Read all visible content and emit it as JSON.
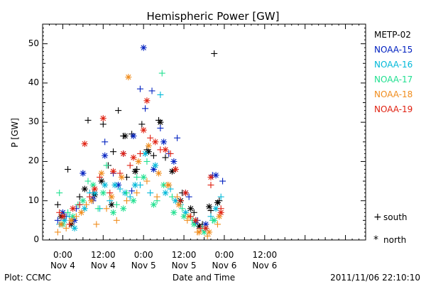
{
  "chart_data": {
    "type": "scatter",
    "title": "Hemispheric Power [GW]",
    "ylabel": "P [GW]",
    "xlabel": "Date and Time",
    "ylim": [
      0,
      55
    ],
    "xlim_hours": [
      -6,
      90
    ],
    "y_ticks": [
      0,
      10,
      20,
      30,
      40,
      50
    ],
    "x_ticks": [
      {
        "hour": 0,
        "time": "0:00",
        "date": "Nov 4"
      },
      {
        "hour": 12,
        "time": "12:00",
        "date": "Nov 4"
      },
      {
        "hour": 24,
        "time": "0:00",
        "date": "Nov 5"
      },
      {
        "hour": 36,
        "time": "12:00",
        "date": "Nov 5"
      },
      {
        "hour": 48,
        "time": "0:00",
        "date": "Nov 6"
      },
      {
        "hour": 60,
        "time": "12:00",
        "date": "Nov 6"
      }
    ],
    "legend_position": "right",
    "series": [
      {
        "name": "METP-02",
        "color": "#000000",
        "points": [
          [
            -1.5,
            9,
            "+"
          ],
          [
            0.5,
            6,
            "+"
          ],
          [
            1.5,
            18,
            "+"
          ],
          [
            3,
            5,
            "+"
          ],
          [
            5,
            11,
            "+"
          ],
          [
            7.5,
            30.5,
            "+"
          ],
          [
            9,
            12,
            "+"
          ],
          [
            12,
            29.5,
            "+"
          ],
          [
            13.5,
            19,
            "+"
          ],
          [
            15,
            22.5,
            "+"
          ],
          [
            16.5,
            33,
            "+"
          ],
          [
            18,
            26.5,
            "+"
          ],
          [
            19,
            16,
            "+"
          ],
          [
            20.5,
            27,
            "+"
          ],
          [
            22,
            18,
            "+"
          ],
          [
            23.5,
            29.5,
            "+"
          ],
          [
            25,
            23,
            "+"
          ],
          [
            27,
            21.5,
            "+"
          ],
          [
            28.5,
            30.5,
            "+"
          ],
          [
            30.5,
            21,
            "+"
          ],
          [
            33.5,
            18,
            "+"
          ],
          [
            35.5,
            12,
            "+"
          ],
          [
            39,
            7,
            "+"
          ],
          [
            41.5,
            4,
            "+"
          ],
          [
            44,
            7.5,
            "+"
          ],
          [
            45,
            47.5,
            "+"
          ],
          [
            46.5,
            10,
            "+"
          ],
          [
            -0.5,
            6,
            "*"
          ],
          [
            2.5,
            4,
            "*"
          ],
          [
            6.5,
            13,
            "*"
          ],
          [
            9.5,
            11.5,
            "*"
          ],
          [
            11.5,
            15,
            "*"
          ],
          [
            14.5,
            9,
            "*"
          ],
          [
            18.5,
            26.5,
            "*"
          ],
          [
            21.5,
            17.5,
            "*"
          ],
          [
            25.5,
            22.5,
            "*"
          ],
          [
            29,
            30,
            "*"
          ],
          [
            32.5,
            17.5,
            "*"
          ],
          [
            35,
            10,
            "*"
          ],
          [
            38,
            8,
            "*"
          ],
          [
            40.5,
            3.5,
            "*"
          ],
          [
            43.5,
            8.5,
            "*"
          ],
          [
            46,
            9.5,
            "*"
          ]
        ]
      },
      {
        "name": "NOAA-15",
        "color": "#0020c0",
        "points": [
          [
            -1.5,
            5,
            "+"
          ],
          [
            1,
            6,
            "+"
          ],
          [
            4,
            8,
            "+"
          ],
          [
            6,
            17,
            "+"
          ],
          [
            9,
            10,
            "+"
          ],
          [
            12.5,
            25,
            "+"
          ],
          [
            15,
            17,
            "+"
          ],
          [
            18,
            22,
            "+"
          ],
          [
            20.5,
            12.5,
            "+"
          ],
          [
            23,
            38.5,
            "+"
          ],
          [
            24.5,
            33.5,
            "+"
          ],
          [
            26.5,
            38,
            "+"
          ],
          [
            29,
            28.5,
            "+"
          ],
          [
            31.5,
            22,
            "+"
          ],
          [
            34,
            26,
            "+"
          ],
          [
            37.5,
            11,
            "+"
          ],
          [
            40,
            5,
            "+"
          ],
          [
            44.5,
            16.5,
            "+"
          ],
          [
            47.5,
            15,
            "+"
          ],
          [
            0,
            7,
            "*"
          ],
          [
            3.5,
            5,
            "*"
          ],
          [
            6,
            17,
            "*"
          ],
          [
            9,
            10.5,
            "*"
          ],
          [
            12.5,
            21.5,
            "*"
          ],
          [
            16.5,
            14,
            "*"
          ],
          [
            21,
            26.5,
            "*"
          ],
          [
            24,
            49,
            "*"
          ],
          [
            27,
            18,
            "*"
          ],
          [
            30,
            25,
            "*"
          ],
          [
            33,
            20,
            "*"
          ],
          [
            36.5,
            12,
            "*"
          ],
          [
            39.5,
            4.5,
            "*"
          ],
          [
            42.5,
            4,
            "*"
          ],
          [
            45.5,
            16.5,
            "*"
          ]
        ]
      },
      {
        "name": "NOAA-16",
        "color": "#00b8d8",
        "points": [
          [
            -1,
            4,
            "+"
          ],
          [
            2,
            6,
            "+"
          ],
          [
            5,
            9,
            "+"
          ],
          [
            8,
            12,
            "+"
          ],
          [
            11,
            8,
            "+"
          ],
          [
            14,
            10,
            "+"
          ],
          [
            17,
            13,
            "+"
          ],
          [
            20,
            11,
            "+"
          ],
          [
            23,
            14,
            "+"
          ],
          [
            26,
            12,
            "+"
          ],
          [
            29,
            37,
            "+"
          ],
          [
            32,
            13,
            "+"
          ],
          [
            35,
            9,
            "+"
          ],
          [
            38,
            6,
            "+"
          ],
          [
            41,
            3,
            "+"
          ],
          [
            44,
            6,
            "+"
          ],
          [
            47,
            11,
            "+"
          ],
          [
            0.5,
            5,
            "*"
          ],
          [
            3.5,
            3,
            "*"
          ],
          [
            6.5,
            8,
            "*"
          ],
          [
            9.5,
            12,
            "*"
          ],
          [
            12.5,
            14,
            "*"
          ],
          [
            15.5,
            14,
            "*"
          ],
          [
            18.5,
            12,
            "*"
          ],
          [
            21.5,
            14,
            "*"
          ],
          [
            24.5,
            22,
            "*"
          ],
          [
            27.5,
            19,
            "*"
          ],
          [
            30.5,
            12,
            "*"
          ],
          [
            33.5,
            10,
            "*"
          ],
          [
            36.5,
            7,
            "*"
          ],
          [
            39.5,
            5,
            "*"
          ],
          [
            42.5,
            3,
            "*"
          ],
          [
            45.5,
            8,
            "*"
          ]
        ]
      },
      {
        "name": "NOAA-17",
        "color": "#20e090",
        "points": [
          [
            -1,
            12,
            "+"
          ],
          [
            1.5,
            7,
            "+"
          ],
          [
            4.5,
            9,
            "+"
          ],
          [
            7.5,
            15,
            "+"
          ],
          [
            10.5,
            8,
            "+"
          ],
          [
            13,
            19,
            "+"
          ],
          [
            16,
            9,
            "+"
          ],
          [
            19,
            12,
            "+"
          ],
          [
            22,
            16,
            "+"
          ],
          [
            25,
            20,
            "+"
          ],
          [
            28,
            10,
            "+"
          ],
          [
            29.5,
            42.5,
            "+"
          ],
          [
            32.5,
            11,
            "+"
          ],
          [
            35.5,
            8,
            "+"
          ],
          [
            38.5,
            5,
            "+"
          ],
          [
            41.5,
            3,
            "+"
          ],
          [
            44.5,
            5,
            "+"
          ],
          [
            0,
            4,
            "*"
          ],
          [
            3,
            6,
            "*"
          ],
          [
            6,
            10,
            "*"
          ],
          [
            9,
            14,
            "*"
          ],
          [
            12,
            12,
            "*"
          ],
          [
            15,
            7,
            "*"
          ],
          [
            18,
            8,
            "*"
          ],
          [
            21,
            10,
            "*"
          ],
          [
            24,
            16,
            "*"
          ],
          [
            27,
            9,
            "*"
          ],
          [
            30,
            14,
            "*"
          ],
          [
            33,
            7,
            "*"
          ],
          [
            36,
            6,
            "*"
          ],
          [
            39,
            4,
            "*"
          ],
          [
            42,
            2,
            "*"
          ],
          [
            45,
            5,
            "*"
          ]
        ]
      },
      {
        "name": "NOAA-18",
        "color": "#f08c1c",
        "points": [
          [
            -1.5,
            2,
            "+"
          ],
          [
            1,
            3,
            "+"
          ],
          [
            4,
            6,
            "+"
          ],
          [
            7,
            9,
            "+"
          ],
          [
            10,
            4,
            "+"
          ],
          [
            13,
            8,
            "+"
          ],
          [
            16,
            5,
            "+"
          ],
          [
            19,
            10,
            "+"
          ],
          [
            22,
            12,
            "+"
          ],
          [
            25,
            15,
            "+"
          ],
          [
            28,
            11,
            "+"
          ],
          [
            31,
            14,
            "+"
          ],
          [
            34,
            11,
            "+"
          ],
          [
            37,
            5,
            "+"
          ],
          [
            40,
            2,
            "+"
          ],
          [
            43,
            1,
            "+"
          ],
          [
            46,
            4,
            "+"
          ],
          [
            -0.5,
            4,
            "*"
          ],
          [
            2.5,
            5,
            "*"
          ],
          [
            5.5,
            7,
            "*"
          ],
          [
            8.5,
            10,
            "*"
          ],
          [
            11.5,
            17,
            "*"
          ],
          [
            14.5,
            11,
            "*"
          ],
          [
            17.5,
            16,
            "*"
          ],
          [
            19.5,
            41.5,
            "*"
          ],
          [
            22.5,
            20,
            "*"
          ],
          [
            25.5,
            24,
            "*"
          ],
          [
            28.5,
            17,
            "*"
          ],
          [
            31.5,
            14,
            "*"
          ],
          [
            34.5,
            9,
            "*"
          ],
          [
            37.5,
            6,
            "*"
          ],
          [
            40.5,
            2,
            "*"
          ],
          [
            43.5,
            2,
            "*"
          ],
          [
            46.5,
            6,
            "*"
          ]
        ]
      },
      {
        "name": "NOAA-19",
        "color": "#e02010",
        "points": [
          [
            -1,
            7,
            "+"
          ],
          [
            2,
            4,
            "+"
          ],
          [
            5,
            9,
            "+"
          ],
          [
            8,
            11,
            "+"
          ],
          [
            11,
            16,
            "+"
          ],
          [
            14,
            12,
            "+"
          ],
          [
            17,
            17,
            "+"
          ],
          [
            20,
            19,
            "+"
          ],
          [
            23,
            22,
            "+"
          ],
          [
            26,
            26,
            "+"
          ],
          [
            29,
            23,
            "+"
          ],
          [
            32,
            22,
            "+"
          ],
          [
            35,
            10,
            "+"
          ],
          [
            38,
            6,
            "+"
          ],
          [
            41,
            3,
            "+"
          ],
          [
            44,
            14,
            "+"
          ],
          [
            47,
            8,
            "+"
          ],
          [
            0,
            6,
            "*"
          ],
          [
            3,
            8,
            "*"
          ],
          [
            6.5,
            24.5,
            "*"
          ],
          [
            9.5,
            13,
            "*"
          ],
          [
            12,
            31,
            "*"
          ],
          [
            15,
            17.5,
            "*"
          ],
          [
            18,
            22,
            "*"
          ],
          [
            21,
            21,
            "*"
          ],
          [
            24,
            28,
            "*"
          ],
          [
            25,
            35.5,
            "*"
          ],
          [
            27.5,
            25,
            "*"
          ],
          [
            30.5,
            23,
            "*"
          ],
          [
            33.5,
            18,
            "*"
          ],
          [
            36.5,
            12,
            "*"
          ],
          [
            39.5,
            5,
            "*"
          ],
          [
            42.5,
            3,
            "*"
          ],
          [
            44,
            16,
            "*"
          ],
          [
            47,
            7,
            "*"
          ]
        ]
      }
    ],
    "marker_legend": [
      {
        "symbol": "+",
        "label": "south"
      },
      {
        "symbol": "*",
        "label": "north"
      }
    ],
    "footer": {
      "left": "Plot: CCMC",
      "right": "2011/11/06 22:10:10"
    }
  }
}
